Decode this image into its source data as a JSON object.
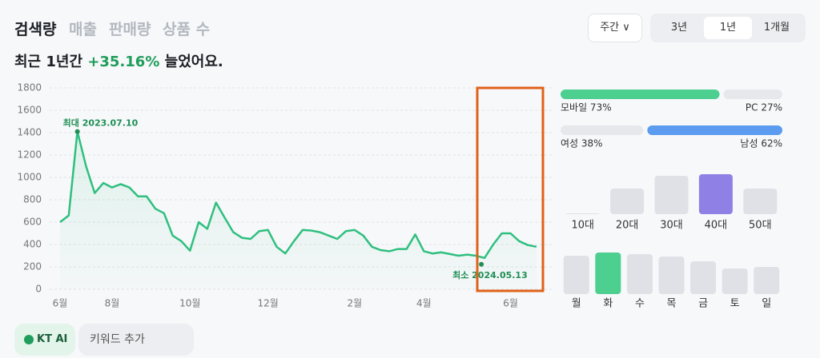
{
  "ui": {
    "tabs": [
      "검색량",
      "매출",
      "판매량",
      "상품 수"
    ],
    "headline": {
      "prefix": "최근 1년간",
      "change": "+35.16%",
      "suffix": "늘었어요."
    },
    "period_select": "주간",
    "range_tabs": [
      "3년",
      "1년",
      "1개월"
    ],
    "footer": {
      "ai": "KT AI",
      "keyword": "키워드 추가"
    }
  },
  "chart_data": [
    {
      "type": "line",
      "color": "#2fbf7f",
      "categories": [
        "6월",
        null,
        null,
        null,
        null,
        null,
        "8월",
        null,
        null,
        null,
        null,
        null,
        null,
        null,
        null,
        "10월",
        null,
        null,
        null,
        null,
        null,
        null,
        null,
        null,
        "12월",
        null,
        null,
        null,
        null,
        null,
        null,
        null,
        null,
        null,
        "2월",
        null,
        null,
        null,
        null,
        null,
        null,
        null,
        "4월",
        null,
        null,
        null,
        null,
        null,
        null,
        null,
        null,
        null,
        "6월",
        null,
        null,
        null
      ],
      "values": [
        600,
        660,
        1410,
        1100,
        860,
        950,
        910,
        940,
        910,
        830,
        830,
        720,
        680,
        480,
        430,
        345,
        600,
        540,
        775,
        640,
        510,
        460,
        450,
        520,
        530,
        380,
        320,
        430,
        530,
        525,
        510,
        480,
        450,
        520,
        530,
        480,
        380,
        350,
        340,
        360,
        360,
        490,
        340,
        320,
        330,
        315,
        300,
        310,
        300,
        280,
        400,
        500,
        500,
        430,
        395,
        380
      ],
      "ylim": [
        0,
        1800
      ],
      "yticks": [
        0,
        200,
        400,
        600,
        800,
        1000,
        1200,
        1400,
        1600,
        1800
      ],
      "grid": true,
      "max_label": "최대 2023.07.10",
      "min_label": "최소 2024.05.13"
    },
    {
      "type": "share",
      "values": [
        73,
        27
      ],
      "value_labels": [
        "모바일 73%",
        "PC 27%"
      ],
      "colors": [
        "#4ccf8f",
        "#e6e8ec"
      ]
    },
    {
      "type": "share",
      "values": [
        38,
        62
      ],
      "value_labels": [
        "여성 38%",
        "남성 62%"
      ],
      "colors": [
        "#e6e8ec",
        "#5b9cf0"
      ]
    },
    {
      "type": "bar",
      "categories": [
        "10대",
        "20대",
        "30대",
        "40대",
        "50대"
      ],
      "values": [
        1,
        32,
        48,
        50,
        32
      ],
      "color": "#dfe1e6",
      "highlight_color": "#8f80e6"
    },
    {
      "type": "bar",
      "categories": [
        "월",
        "화",
        "수",
        "목",
        "금",
        "토",
        "일"
      ],
      "values": [
        48,
        52,
        50,
        47,
        41,
        32,
        34
      ],
      "color": "#dfe1e6",
      "highlight_color": "#4ccf8f"
    }
  ]
}
